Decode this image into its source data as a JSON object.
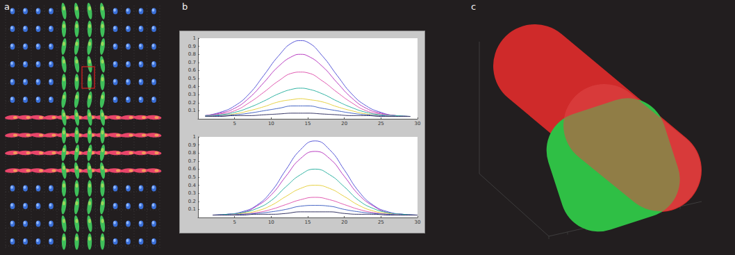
{
  "panel_labels": [
    "a",
    "b",
    "c"
  ],
  "chart_data": [
    {
      "type": "line",
      "xlim": [
        0,
        30
      ],
      "ylim": [
        0,
        1
      ],
      "xticks": [
        5,
        10,
        15,
        20,
        25,
        30
      ],
      "yticks": [
        0.1,
        0.2,
        0.3,
        0.4,
        0.5,
        0.6,
        0.7,
        0.8,
        0.9,
        1
      ],
      "grid": false,
      "x": [
        1,
        3,
        5,
        7,
        9,
        11,
        13,
        14,
        15,
        17,
        19,
        21,
        23,
        25,
        27,
        29
      ],
      "series": [
        {
          "color": "#5a5ad8",
          "values": [
            0.04,
            0.08,
            0.16,
            0.31,
            0.54,
            0.78,
            0.95,
            0.97,
            0.95,
            0.78,
            0.54,
            0.31,
            0.16,
            0.08,
            0.04,
            0.03
          ]
        },
        {
          "color": "#b83cc0",
          "values": [
            0.04,
            0.07,
            0.13,
            0.26,
            0.45,
            0.65,
            0.78,
            0.8,
            0.78,
            0.65,
            0.45,
            0.26,
            0.13,
            0.07,
            0.04,
            0.03
          ]
        },
        {
          "color": "#e05ab0",
          "values": [
            0.04,
            0.06,
            0.1,
            0.2,
            0.33,
            0.47,
            0.57,
            0.58,
            0.57,
            0.47,
            0.33,
            0.2,
            0.1,
            0.06,
            0.04,
            0.03
          ]
        },
        {
          "color": "#2fb2a2",
          "values": [
            0.04,
            0.05,
            0.08,
            0.14,
            0.22,
            0.31,
            0.37,
            0.38,
            0.37,
            0.31,
            0.22,
            0.14,
            0.08,
            0.05,
            0.04,
            0.03
          ]
        },
        {
          "color": "#e6d040",
          "values": [
            0.03,
            0.04,
            0.06,
            0.1,
            0.15,
            0.21,
            0.24,
            0.25,
            0.24,
            0.21,
            0.15,
            0.1,
            0.06,
            0.04,
            0.03,
            0.03
          ]
        },
        {
          "color": "#4464c4",
          "values": [
            0.03,
            0.04,
            0.05,
            0.07,
            0.1,
            0.13,
            0.16,
            0.16,
            0.16,
            0.13,
            0.1,
            0.07,
            0.05,
            0.04,
            0.03,
            0.03
          ]
        },
        {
          "color": "#303060",
          "values": [
            0.03,
            0.03,
            0.04,
            0.04,
            0.05,
            0.06,
            0.07,
            0.07,
            0.07,
            0.06,
            0.05,
            0.04,
            0.04,
            0.03,
            0.03,
            0.03
          ]
        }
      ]
    },
    {
      "type": "line",
      "xlim": [
        0,
        30
      ],
      "ylim": [
        0,
        1
      ],
      "xticks": [
        5,
        10,
        15,
        20,
        25,
        30
      ],
      "yticks": [
        0.1,
        0.2,
        0.3,
        0.4,
        0.5,
        0.6,
        0.7,
        0.8,
        0.9,
        1
      ],
      "grid": false,
      "x": [
        2,
        4,
        6,
        8,
        10,
        12,
        14,
        16,
        18,
        20,
        22,
        24,
        26,
        28,
        30
      ],
      "series": [
        {
          "color": "#5a5ad8",
          "values": [
            0.03,
            0.04,
            0.07,
            0.15,
            0.32,
            0.59,
            0.84,
            0.95,
            0.84,
            0.59,
            0.32,
            0.15,
            0.07,
            0.04,
            0.03
          ]
        },
        {
          "color": "#b83cc0",
          "values": [
            0.03,
            0.04,
            0.06,
            0.14,
            0.28,
            0.51,
            0.73,
            0.82,
            0.73,
            0.51,
            0.28,
            0.14,
            0.06,
            0.04,
            0.03
          ]
        },
        {
          "color": "#2fb2a2",
          "values": [
            0.03,
            0.04,
            0.06,
            0.11,
            0.21,
            0.38,
            0.53,
            0.6,
            0.53,
            0.38,
            0.21,
            0.11,
            0.06,
            0.04,
            0.03
          ]
        },
        {
          "color": "#e6d040",
          "values": [
            0.03,
            0.03,
            0.05,
            0.08,
            0.15,
            0.26,
            0.36,
            0.4,
            0.36,
            0.26,
            0.15,
            0.08,
            0.05,
            0.03,
            0.03
          ]
        },
        {
          "color": "#e05ab0",
          "values": [
            0.03,
            0.03,
            0.04,
            0.06,
            0.1,
            0.16,
            0.22,
            0.25,
            0.22,
            0.16,
            0.1,
            0.06,
            0.04,
            0.03,
            0.03
          ]
        },
        {
          "color": "#4464c4",
          "values": [
            0.03,
            0.03,
            0.04,
            0.05,
            0.07,
            0.1,
            0.14,
            0.15,
            0.14,
            0.1,
            0.07,
            0.05,
            0.04,
            0.03,
            0.03
          ]
        },
        {
          "color": "#303060",
          "values": [
            0.03,
            0.03,
            0.03,
            0.04,
            0.04,
            0.05,
            0.07,
            0.07,
            0.07,
            0.05,
            0.04,
            0.04,
            0.03,
            0.03,
            0.03
          ]
        }
      ]
    }
  ]
}
